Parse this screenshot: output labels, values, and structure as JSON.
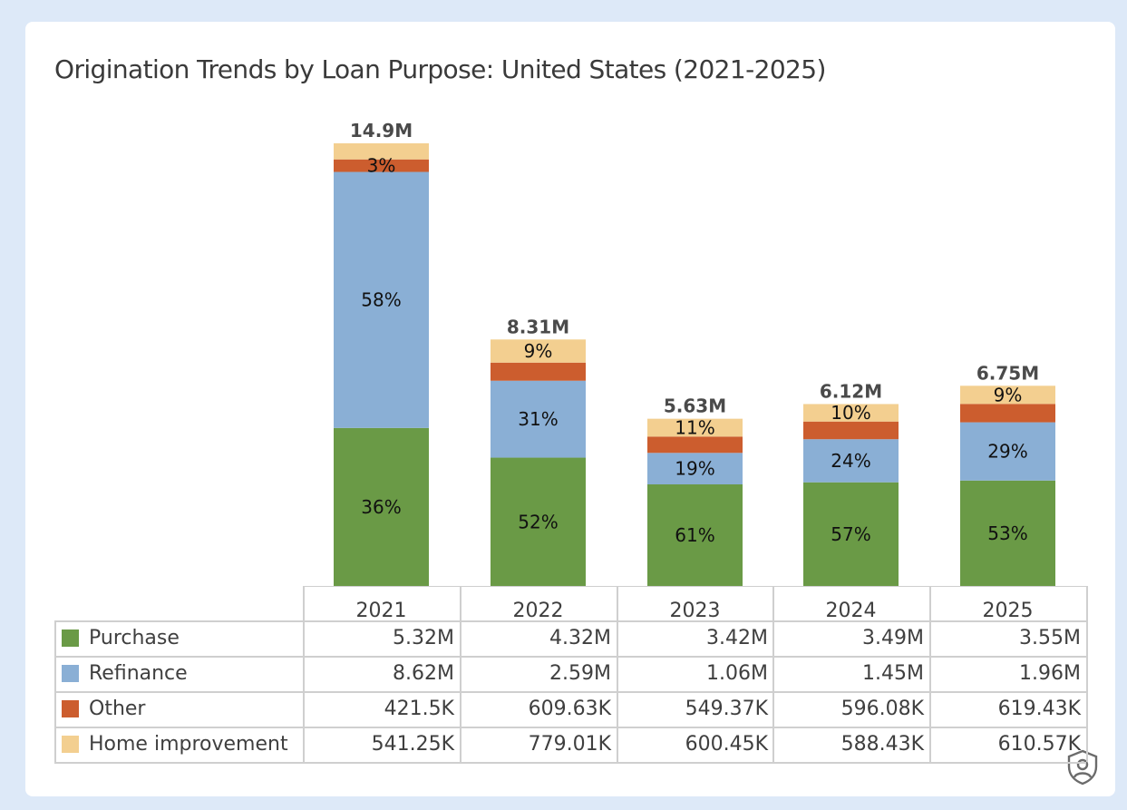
{
  "chart_data": {
    "type": "bar",
    "stacked": true,
    "title": "Origination Trends by Loan Purpose: United States (2021-2025)",
    "categories": [
      "2021",
      "2022",
      "2023",
      "2024",
      "2025"
    ],
    "totals": [
      "14.9M",
      "8.31M",
      "5.63M",
      "6.12M",
      "6.75M"
    ],
    "series": [
      {
        "name": "Purchase",
        "color": "#6a9a46",
        "values": [
          5320000,
          4320000,
          3420000,
          3490000,
          3550000
        ],
        "value_labels": [
          "5.32M",
          "4.32M",
          "3.42M",
          "3.49M",
          "3.55M"
        ],
        "pct_labels": [
          "36%",
          "52%",
          "61%",
          "57%",
          "53%"
        ]
      },
      {
        "name": "Refinance",
        "color": "#8aafd5",
        "values": [
          8620000,
          2590000,
          1060000,
          1450000,
          1960000
        ],
        "value_labels": [
          "8.62M",
          "2.59M",
          "1.06M",
          "1.45M",
          "1.96M"
        ],
        "pct_labels": [
          "58%",
          "31%",
          "19%",
          "24%",
          "29%"
        ]
      },
      {
        "name": "Other",
        "color": "#cc5d2e",
        "values": [
          421500,
          609630,
          549370,
          596080,
          619430
        ],
        "value_labels": [
          "421.5K",
          "609.63K",
          "549.37K",
          "596.08K",
          "619.43K"
        ],
        "pct_labels": [
          "3%",
          "",
          "",
          "",
          ""
        ]
      },
      {
        "name": "Home improvement",
        "color": "#f3cf90",
        "values": [
          541250,
          779010,
          600450,
          588430,
          610570
        ],
        "value_labels": [
          "541.25K",
          "779.01K",
          "600.45K",
          "588.43K",
          "610.57K"
        ],
        "pct_labels": [
          "",
          "9%",
          "11%",
          "10%",
          "9%"
        ]
      }
    ],
    "legend": "table-below",
    "grid": false
  },
  "icons": {
    "shield": "privacy-shield-icon"
  }
}
